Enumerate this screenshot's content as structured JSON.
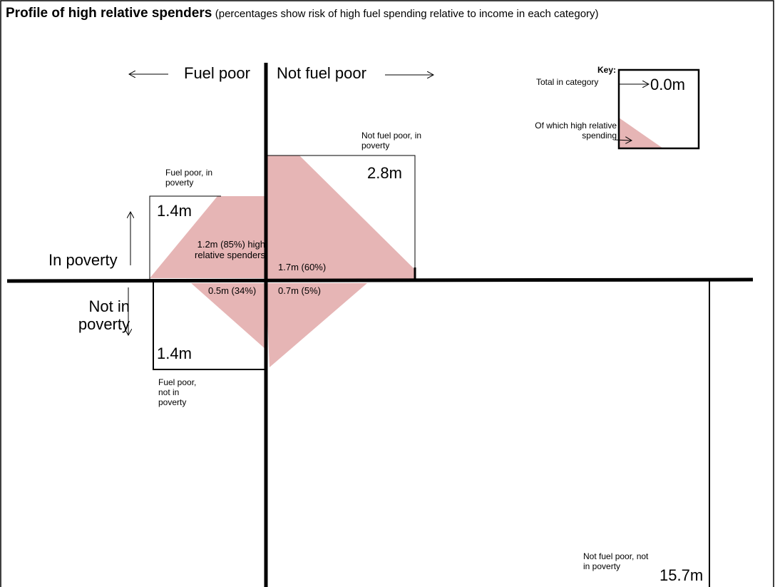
{
  "header": {
    "title": "Profile of high relative spenders",
    "subtitle": "(percentages show risk of high fuel spending relative to income in each category)"
  },
  "axes": {
    "fuel_poor": "Fuel poor",
    "not_fuel_poor": "Not fuel poor",
    "in_poverty": "In poverty",
    "not_in_poverty": "Not in poverty"
  },
  "key": {
    "heading": "Key:",
    "total": "Total in category",
    "total_value": "0.0m",
    "high": "Of which high relative spending"
  },
  "quadrants": [
    {
      "label": "Fuel poor, in poverty",
      "total": "1.4m",
      "high": "1.2m (85%) high relative spenders"
    },
    {
      "label": "Not fuel poor, in poverty",
      "total": "2.8m",
      "high": "1.7m (60%)"
    },
    {
      "label": "Fuel poor, not in poverty",
      "total": "1.4m",
      "high": "0.5m (34%)"
    },
    {
      "label": "Not fuel poor, not in poverty",
      "total": "15.7m",
      "high": "0.7m (5%)"
    }
  ]
}
